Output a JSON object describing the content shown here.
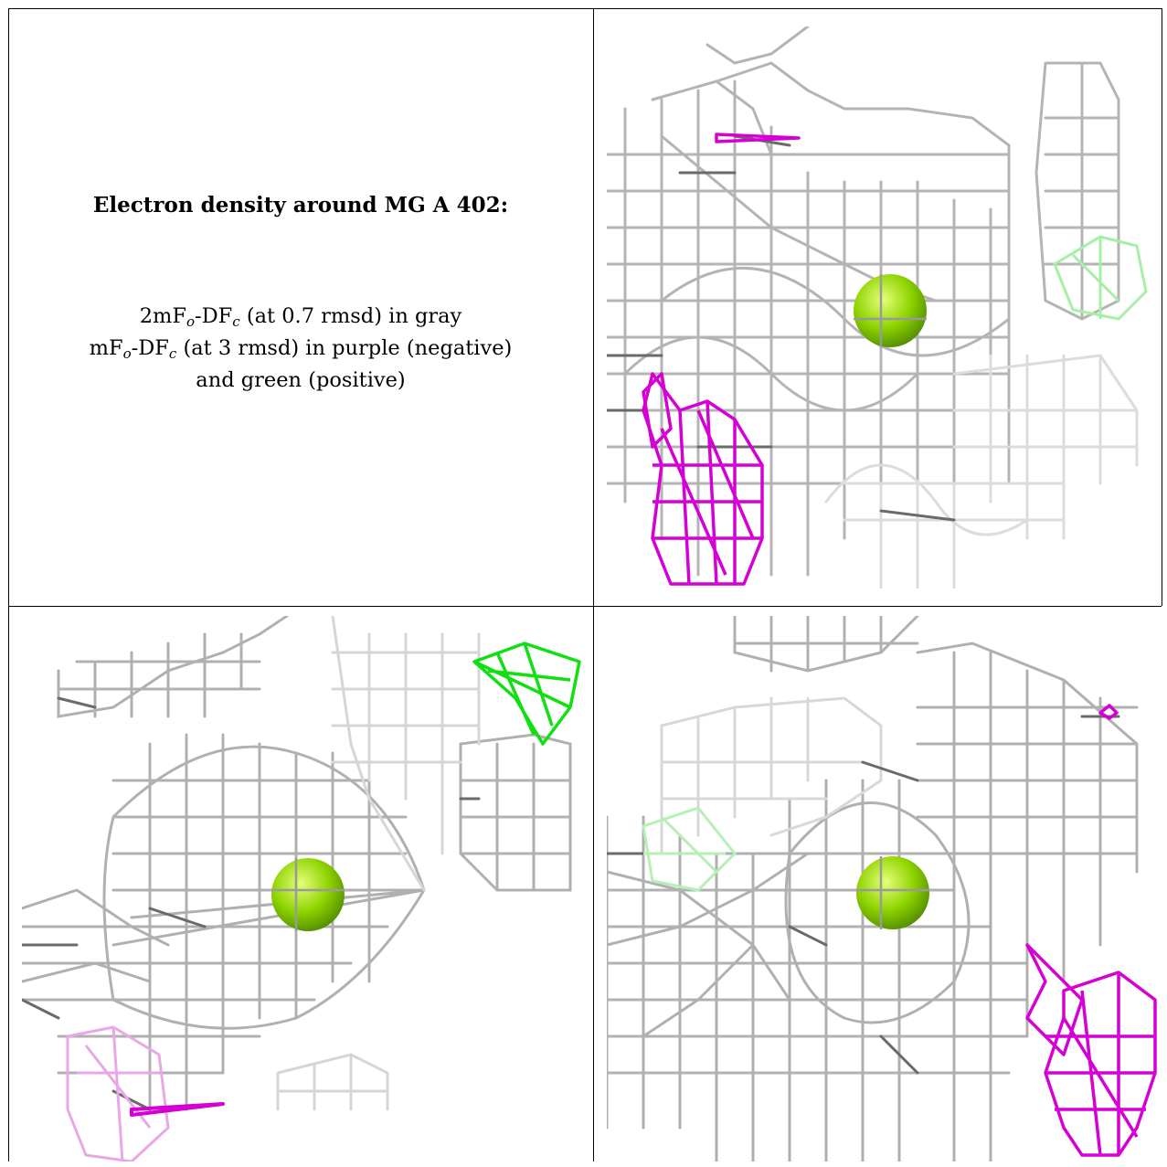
{
  "legend": {
    "title": "Electron density around MG A 402:",
    "line1": {
      "prefix": "2mF",
      "sub1": "o",
      "mid": "-DF",
      "sub2": "c",
      "suffix": " (at 0.7 rmsd) in gray"
    },
    "line2": {
      "prefix": "mF",
      "sub1": "o",
      "mid": "-DF",
      "sub2": "c",
      "suffix": " (at 3 rmsd) in purple (negative)"
    },
    "line3": "and green (positive)"
  },
  "colors": {
    "mesh_gray": "#9a9a9a",
    "mesh_dark": "#6e6e6e",
    "negative_purple": "#d400d4",
    "positive_green": "#10e010",
    "atom_mg": "#8fd400"
  },
  "panels": [
    {
      "name": "view-1",
      "atom": "MG A 402"
    },
    {
      "name": "view-2",
      "atom": "MG A 402"
    },
    {
      "name": "view-3",
      "atom": "MG A 402"
    }
  ]
}
